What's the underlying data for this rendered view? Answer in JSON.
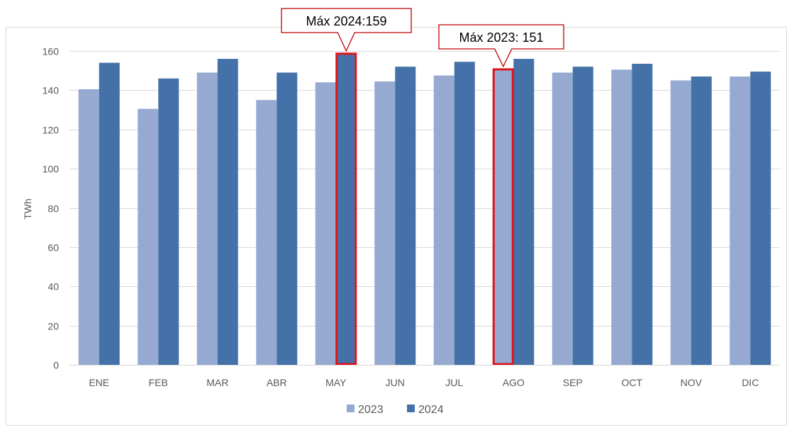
{
  "chart_data": {
    "type": "bar",
    "title": "",
    "xlabel": "",
    "ylabel": "TWh",
    "ylim": [
      0,
      160
    ],
    "yticks": [
      0,
      20,
      40,
      60,
      80,
      100,
      120,
      140,
      160
    ],
    "grid": true,
    "legend_position": "bottom",
    "categories": [
      "ENE",
      "FEB",
      "MAR",
      "ABR",
      "MAY",
      "JUN",
      "JUL",
      "AGO",
      "SEP",
      "OCT",
      "NOV",
      "DIC"
    ],
    "series": [
      {
        "name": "2023",
        "color": "#95a9d1",
        "values": [
          140.5,
          130.5,
          149,
          135,
          144,
          144.5,
          147.5,
          151,
          149,
          150.5,
          145,
          147
        ]
      },
      {
        "name": "2024",
        "color": "#4472a8",
        "values": [
          154,
          146,
          156,
          149,
          159,
          152,
          154.5,
          156,
          152,
          153.5,
          147,
          149.5
        ]
      }
    ],
    "annotations": [
      {
        "text": "Máx 2024:159",
        "category": "MAY",
        "series": "2024",
        "value": 159,
        "highlight_color": "#e0121b"
      },
      {
        "text": "Máx 2023: 151",
        "category": "AGO",
        "series": "2023",
        "value": 151,
        "highlight_color": "#e0121b"
      }
    ]
  }
}
